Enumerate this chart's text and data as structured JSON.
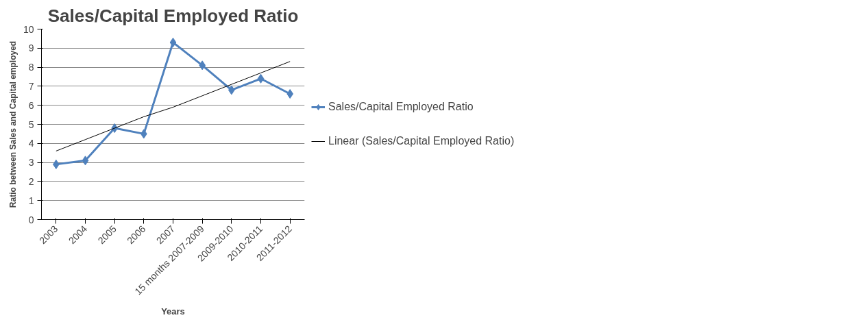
{
  "chart_data": {
    "type": "line",
    "title": "Sales/Capital Employed Ratio",
    "xlabel": "Years",
    "ylabel": "Ratio between Sales and Capital employed",
    "categories": [
      "2003",
      "2004",
      "2005",
      "2006",
      "2007",
      "15 months 2007-2009",
      "2009-2010",
      "2010-2011",
      "2011-2012"
    ],
    "series": [
      {
        "name": "Sales/Capital Employed Ratio",
        "color": "#4f81bd",
        "marker": "diamond",
        "values": [
          2.9,
          3.1,
          4.8,
          4.5,
          9.3,
          8.1,
          6.8,
          7.4,
          6.6
        ]
      },
      {
        "name": "Linear (Sales/Capital Employed Ratio)",
        "color": "#000000",
        "marker": "none",
        "values": [
          3.6,
          4.2,
          4.8,
          5.4,
          5.9,
          6.5,
          7.1,
          7.7,
          8.3
        ]
      }
    ],
    "ylim": [
      0,
      10
    ],
    "yticks": [
      0,
      1,
      2,
      3,
      4,
      5,
      6,
      7,
      8,
      9,
      10
    ],
    "grid": "y",
    "legend": "right",
    "line_style": "solid"
  }
}
